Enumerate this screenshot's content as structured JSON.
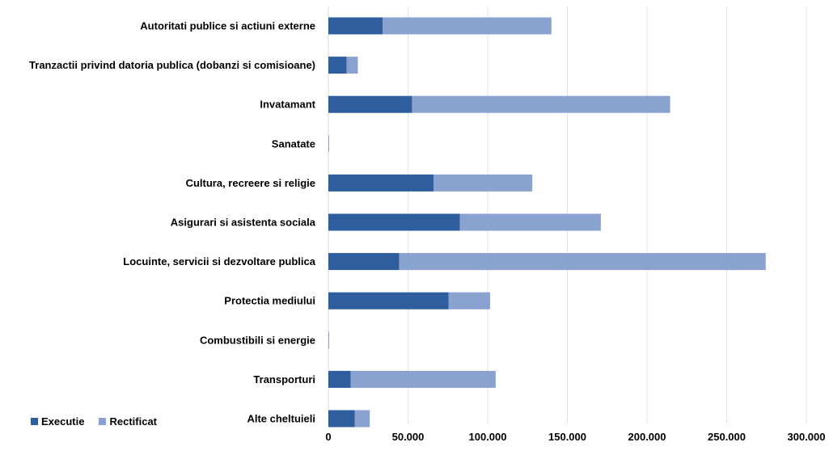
{
  "chart_data": {
    "type": "bar",
    "orientation": "horizontal",
    "stacked": true,
    "title": "",
    "xlabel": "",
    "ylabel": "",
    "categories": [
      "Autoritati publice si actiuni externe",
      "Tranzactii privind datoria publica (dobanzi si comisioane)",
      "Invatamant",
      "Sanatate",
      "Cultura, recreere si religie",
      "Asigurari si asistenta sociala",
      "Locuinte, servicii si dezvoltare publica",
      "Protectia mediului",
      "Combustibili si energie",
      "Transporturi",
      "Alte cheltuieli"
    ],
    "series": [
      {
        "name": "Executie",
        "color": "#2E5E9E",
        "values": [
          34000,
          11500,
          52500,
          0,
          66000,
          82500,
          44500,
          75500,
          0,
          14000,
          16500
        ]
      },
      {
        "name": "Rectificat",
        "color": "#8AA2D0",
        "values": [
          106000,
          7000,
          162000,
          500,
          62000,
          88500,
          230000,
          26000,
          500,
          91000,
          9500
        ]
      }
    ],
    "xlim": [
      0,
      300000
    ],
    "xticks": [
      "0",
      "50.000",
      "100.000",
      "150.000",
      "200.000",
      "250.000",
      "300.000"
    ],
    "grid": "vertical",
    "legend_position": "bottom-left"
  }
}
